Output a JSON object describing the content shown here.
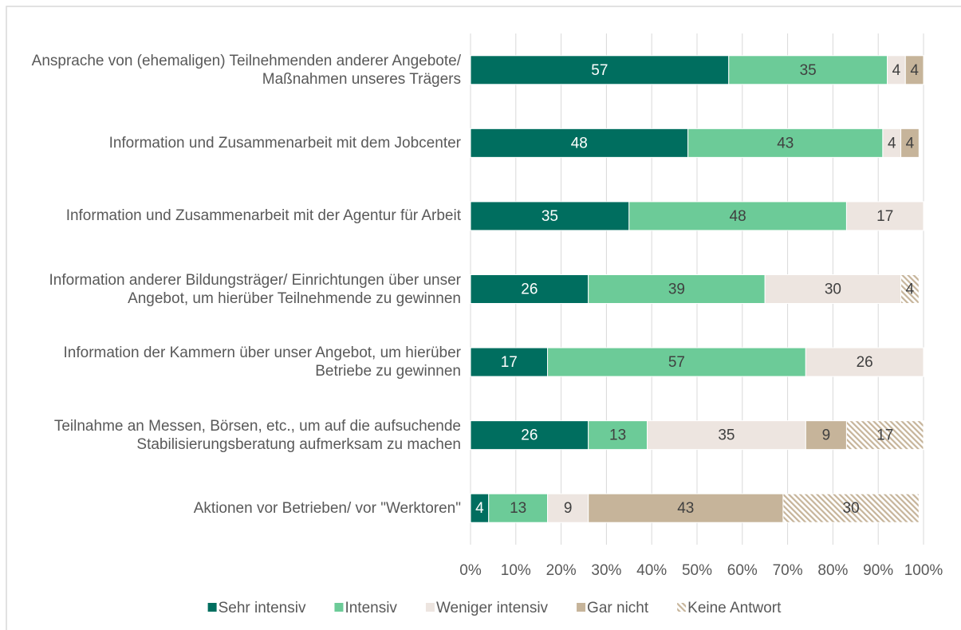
{
  "chart_data": {
    "type": "stacked_barh",
    "categories": [
      "Ansprache von (ehemaligen) Teilnehmenden anderer Angebote/ Maßnahmen unseres Trägers",
      "Information und Zusammenarbeit mit dem Jobcenter",
      "Information und Zusammenarbeit mit der Agentur für Arbeit",
      "Information anderer Bildungsträger/ Einrichtungen über unser Angebot, um hierüber Teilnehmende zu gewinnen",
      "Information der Kammern über unser Angebot, um hierüber Betriebe zu gewinnen",
      "Teilnahme an Messen, Börsen, etc., um auf die aufsuchende Stabilisierungsberatung aufmerksam zu machen",
      "Aktionen vor Betrieben/ vor \"Werktoren\""
    ],
    "series": [
      {
        "name": "Sehr intensiv",
        "color": "#006e5f",
        "label_color": "#ffffff",
        "values": [
          57,
          48,
          35,
          26,
          17,
          26,
          4
        ]
      },
      {
        "name": "Intensiv",
        "color": "#6ccb98",
        "label_color": "#404040",
        "values": [
          35,
          43,
          48,
          39,
          57,
          13,
          13
        ]
      },
      {
        "name": "Weniger intensiv",
        "color": "#ede5e0",
        "label_color": "#404040",
        "values": [
          4,
          4,
          17,
          30,
          26,
          35,
          9
        ]
      },
      {
        "name": "Gar nicht",
        "color": "#c6b49a",
        "label_color": "#404040",
        "values": [
          4,
          4,
          null,
          null,
          null,
          9,
          43
        ]
      },
      {
        "name": "Keine Antwort",
        "color": "#c6b49a",
        "pattern": "hatch",
        "label_color": "#404040",
        "values": [
          null,
          null,
          null,
          4,
          null,
          17,
          30
        ]
      }
    ],
    "xlim": [
      0,
      100
    ],
    "xticks": [
      {
        "value": 0,
        "label": "0%"
      },
      {
        "value": 10,
        "label": "10%"
      },
      {
        "value": 20,
        "label": "20%"
      },
      {
        "value": 30,
        "label": "30%"
      },
      {
        "value": 40,
        "label": "40%"
      },
      {
        "value": 50,
        "label": "50%"
      },
      {
        "value": 60,
        "label": "60%"
      },
      {
        "value": 70,
        "label": "70%"
      },
      {
        "value": 80,
        "label": "80%"
      },
      {
        "value": 90,
        "label": "90%"
      },
      {
        "value": 100,
        "label": "100%"
      }
    ],
    "grid": true,
    "legend": "bottom"
  }
}
